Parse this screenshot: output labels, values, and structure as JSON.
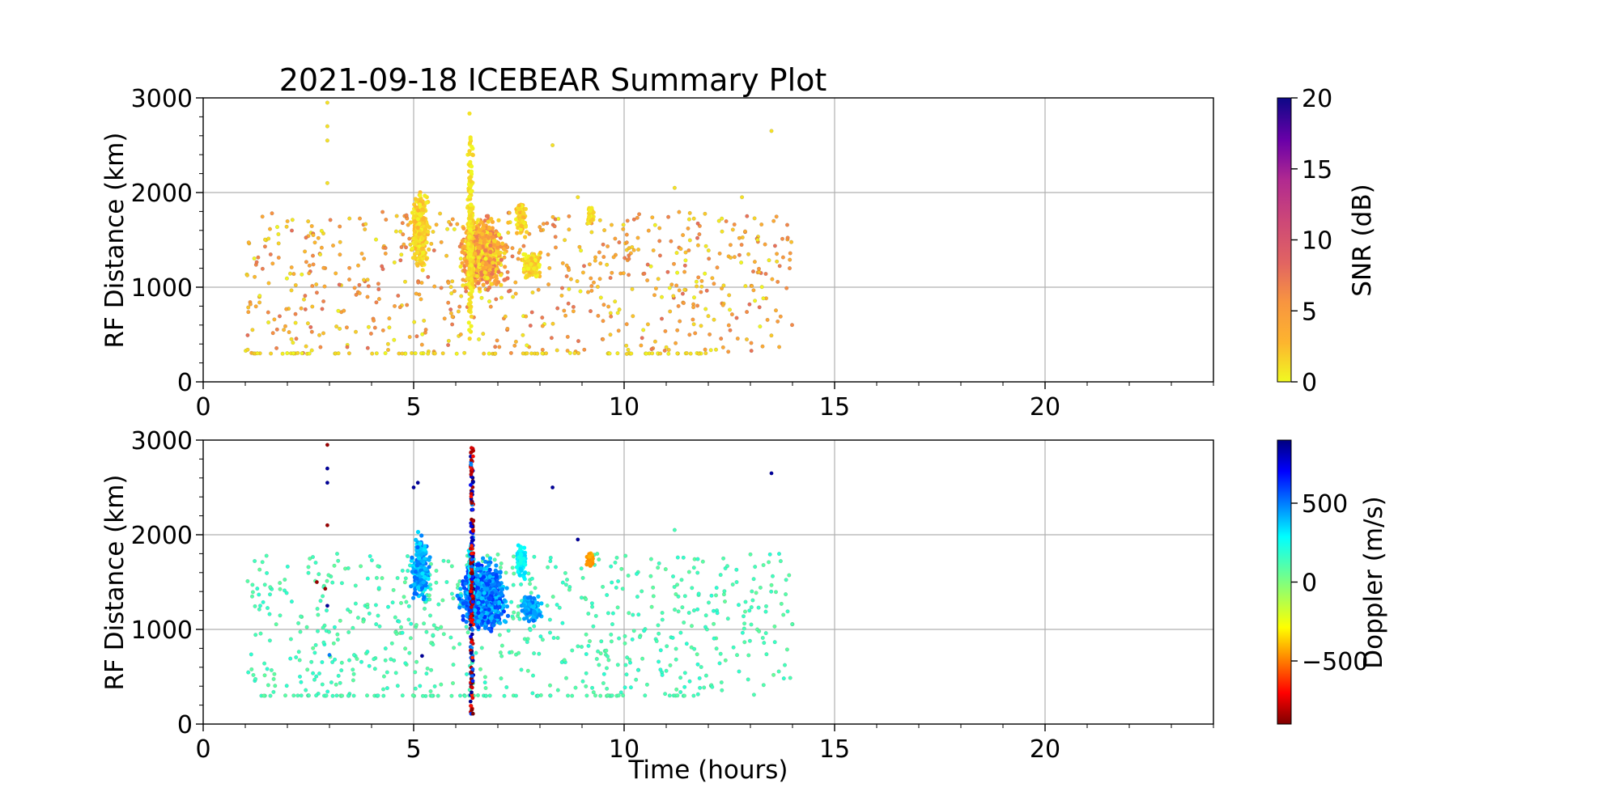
{
  "figure": {
    "title": "2021-09-18 ICEBEAR Summary Plot"
  },
  "chart_data": [
    {
      "type": "scatter",
      "panel": "top",
      "xlabel": "",
      "ylabel": "RF Distance (km)",
      "xlim": [
        0,
        24
      ],
      "ylim": [
        0,
        3000
      ],
      "xticks": [
        0,
        5,
        10,
        15,
        20
      ],
      "yticks": [
        0,
        1000,
        2000,
        3000
      ],
      "grid": true,
      "color_variable": "SNR",
      "colorbar": {
        "label": "SNR (dB)",
        "range": [
          0,
          20
        ],
        "ticks": [
          0,
          5,
          10,
          15,
          20
        ],
        "colormap": "plasma_r"
      },
      "clusters": [
        {
          "t": [
            4.9,
            5.4
          ],
          "r": [
            1100,
            2100
          ],
          "n": 280,
          "v": [
            0,
            3
          ]
        },
        {
          "t": [
            6.0,
            7.3
          ],
          "r": [
            900,
            1800
          ],
          "n": 900,
          "v": [
            0,
            8
          ]
        },
        {
          "t": [
            6.25,
            6.45
          ],
          "r": [
            100,
            2950
          ],
          "n": 220,
          "v": [
            0,
            2
          ]
        },
        {
          "t": [
            7.4,
            7.7
          ],
          "r": [
            1500,
            1950
          ],
          "n": 90,
          "v": [
            0,
            3
          ]
        },
        {
          "t": [
            7.5,
            8.1
          ],
          "r": [
            1050,
            1400
          ],
          "n": 140,
          "v": [
            0,
            3
          ]
        },
        {
          "t": [
            9.1,
            9.3
          ],
          "r": [
            1650,
            1850
          ],
          "n": 40,
          "v": [
            0,
            2
          ]
        }
      ],
      "background": {
        "t": [
          1.0,
          14.0
        ],
        "r": [
          300,
          1800
        ],
        "n": 650,
        "v": [
          0,
          8
        ]
      },
      "floor_line": {
        "t": [
          1.2,
          12.0
        ],
        "r": 300,
        "n": 80,
        "v": [
          0,
          2
        ]
      },
      "isolated": [
        {
          "t": 2.95,
          "r": 2950,
          "v": 1
        },
        {
          "t": 2.95,
          "r": 2700,
          "v": 1
        },
        {
          "t": 2.95,
          "r": 2550,
          "v": 1
        },
        {
          "t": 2.95,
          "r": 2100,
          "v": 1
        },
        {
          "t": 8.3,
          "r": 2500,
          "v": 1
        },
        {
          "t": 13.5,
          "r": 2650,
          "v": 1
        },
        {
          "t": 11.2,
          "r": 2050,
          "v": 1
        },
        {
          "t": 12.8,
          "r": 1950,
          "v": 1
        },
        {
          "t": 8.9,
          "r": 1950,
          "v": 1
        }
      ]
    },
    {
      "type": "scatter",
      "panel": "bottom",
      "xlabel": "Time (hours)",
      "ylabel": "RF Distance (km)",
      "xlim": [
        0,
        24
      ],
      "ylim": [
        0,
        3000
      ],
      "xticks": [
        0,
        5,
        10,
        15,
        20
      ],
      "yticks": [
        0,
        1000,
        2000,
        3000
      ],
      "grid": true,
      "color_variable": "Doppler",
      "colorbar": {
        "label": "Doppler (m/s)",
        "range": [
          -900,
          900
        ],
        "ticks": [
          -500,
          0,
          500
        ],
        "tick_labels": [
          "−500",
          "0",
          "500"
        ],
        "colormap": "jet_r"
      },
      "clusters": [
        {
          "t": [
            4.9,
            5.4
          ],
          "r": [
            1200,
            2100
          ],
          "n": 260,
          "v": [
            250,
            500
          ]
        },
        {
          "t": [
            6.0,
            7.3
          ],
          "r": [
            900,
            1800
          ],
          "n": 900,
          "v": [
            300,
            600
          ]
        },
        {
          "t": [
            6.3,
            6.45
          ],
          "r": [
            1300,
            1950
          ],
          "n": 160,
          "v": [
            200,
            350
          ]
        },
        {
          "t": [
            7.4,
            7.7
          ],
          "r": [
            1500,
            1950
          ],
          "n": 90,
          "v": [
            180,
            300
          ]
        },
        {
          "t": [
            7.5,
            8.1
          ],
          "r": [
            1050,
            1400
          ],
          "n": 140,
          "v": [
            300,
            500
          ]
        },
        {
          "t": [
            9.1,
            9.3
          ],
          "r": [
            1650,
            1850
          ],
          "n": 40,
          "v": [
            -450,
            -350
          ]
        }
      ],
      "column": {
        "t": [
          6.35,
          6.42
        ],
        "r": [
          100,
          2950
        ],
        "n": 200,
        "v": [
          -900,
          900
        ]
      },
      "background": {
        "t": [
          1.0,
          14.0
        ],
        "r": [
          300,
          1800
        ],
        "n": 650,
        "v": [
          50,
          150
        ]
      },
      "floor_line": {
        "t": [
          1.2,
          12.0
        ],
        "r": 300,
        "n": 80,
        "v": [
          60,
          120
        ]
      },
      "isolated": [
        {
          "t": 2.95,
          "r": 2950,
          "v": -850
        },
        {
          "t": 2.95,
          "r": 2700,
          "v": 850
        },
        {
          "t": 2.95,
          "r": 2550,
          "v": 850
        },
        {
          "t": 2.95,
          "r": 2100,
          "v": -850
        },
        {
          "t": 2.7,
          "r": 1500,
          "v": -850
        },
        {
          "t": 2.9,
          "r": 1430,
          "v": -850
        },
        {
          "t": 2.95,
          "r": 1250,
          "v": 850
        },
        {
          "t": 5.1,
          "r": 2550,
          "v": 850
        },
        {
          "t": 5.0,
          "r": 2500,
          "v": 850
        },
        {
          "t": 8.3,
          "r": 2500,
          "v": 850
        },
        {
          "t": 8.9,
          "r": 1950,
          "v": 850
        },
        {
          "t": 13.5,
          "r": 2650,
          "v": 850
        },
        {
          "t": 3.0,
          "r": 730,
          "v": 450
        },
        {
          "t": 5.2,
          "r": 720,
          "v": 850
        },
        {
          "t": 11.2,
          "r": 2050,
          "v": 100
        }
      ]
    }
  ]
}
